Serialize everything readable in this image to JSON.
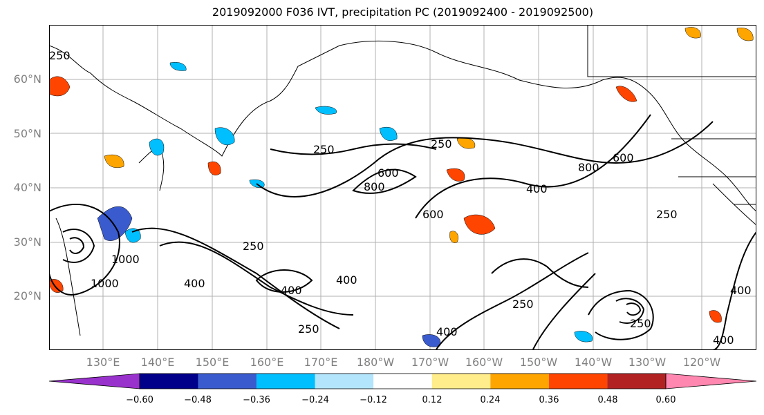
{
  "title": "2019092000 F036 IVT, precipitation PC (2019092400 - 2019092500)",
  "lat_labels": [
    "60°N",
    "50°N",
    "40°N",
    "30°N",
    "20°N"
  ],
  "lon_labels": [
    "130°E",
    "140°E",
    "150°E",
    "160°E",
    "170°E",
    "180°W",
    "170°W",
    "160°W",
    "150°W",
    "140°W",
    "130°W",
    "120°W"
  ],
  "contour_labels": [
    "250",
    "250",
    "250",
    "250",
    "250",
    "250",
    "250",
    "250",
    "400",
    "400",
    "400",
    "400",
    "400",
    "400",
    "400",
    "600",
    "600",
    "600",
    "800",
    "800",
    "1000",
    "1000"
  ],
  "colorbar": {
    "ticks": [
      "−0.60",
      "−0.48",
      "−0.36",
      "−0.24",
      "−0.12",
      "0.12",
      "0.24",
      "0.36",
      "0.48",
      "0.60"
    ],
    "colors": [
      "#9932cc",
      "#00008b",
      "#3a5bcd",
      "#00bfff",
      "#b3e5fc",
      "#ffffff",
      "#ffec8b",
      "#ffa500",
      "#ff4500",
      "#b22222",
      "#ff87b0"
    ]
  },
  "colors": {
    "negative_strong": "#3a5bcd",
    "negative": "#00bfff",
    "negative_light": "#b3e5fc",
    "positive_light": "#ffec8b",
    "positive": "#ffa500",
    "positive_strong": "#ff4500"
  }
}
